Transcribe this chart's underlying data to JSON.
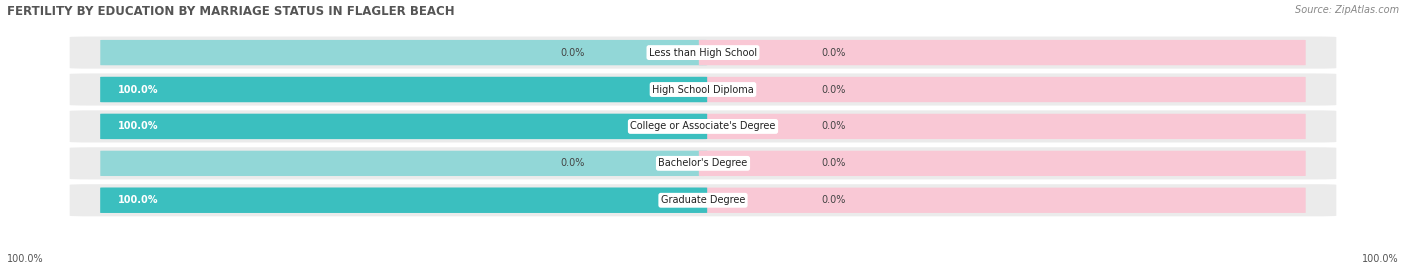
{
  "title": "FERTILITY BY EDUCATION BY MARRIAGE STATUS IN FLAGLER BEACH",
  "source": "Source: ZipAtlas.com",
  "categories": [
    "Less than High School",
    "High School Diploma",
    "College or Associate's Degree",
    "Bachelor's Degree",
    "Graduate Degree"
  ],
  "married_pct": [
    0.0,
    100.0,
    100.0,
    0.0,
    100.0
  ],
  "unmarried_pct": [
    0.0,
    0.0,
    0.0,
    0.0,
    0.0
  ],
  "married_color": "#3bbfbf",
  "married_light_color": "#92d7d7",
  "unmarried_color": "#f4a0b5",
  "unmarried_light_color": "#f9c8d5",
  "row_bg_color": "#ebebeb",
  "title_fontsize": 8.5,
  "source_fontsize": 7,
  "label_fontsize": 7,
  "category_fontsize": 7,
  "legend_fontsize": 7.5,
  "footer_fontsize": 7
}
